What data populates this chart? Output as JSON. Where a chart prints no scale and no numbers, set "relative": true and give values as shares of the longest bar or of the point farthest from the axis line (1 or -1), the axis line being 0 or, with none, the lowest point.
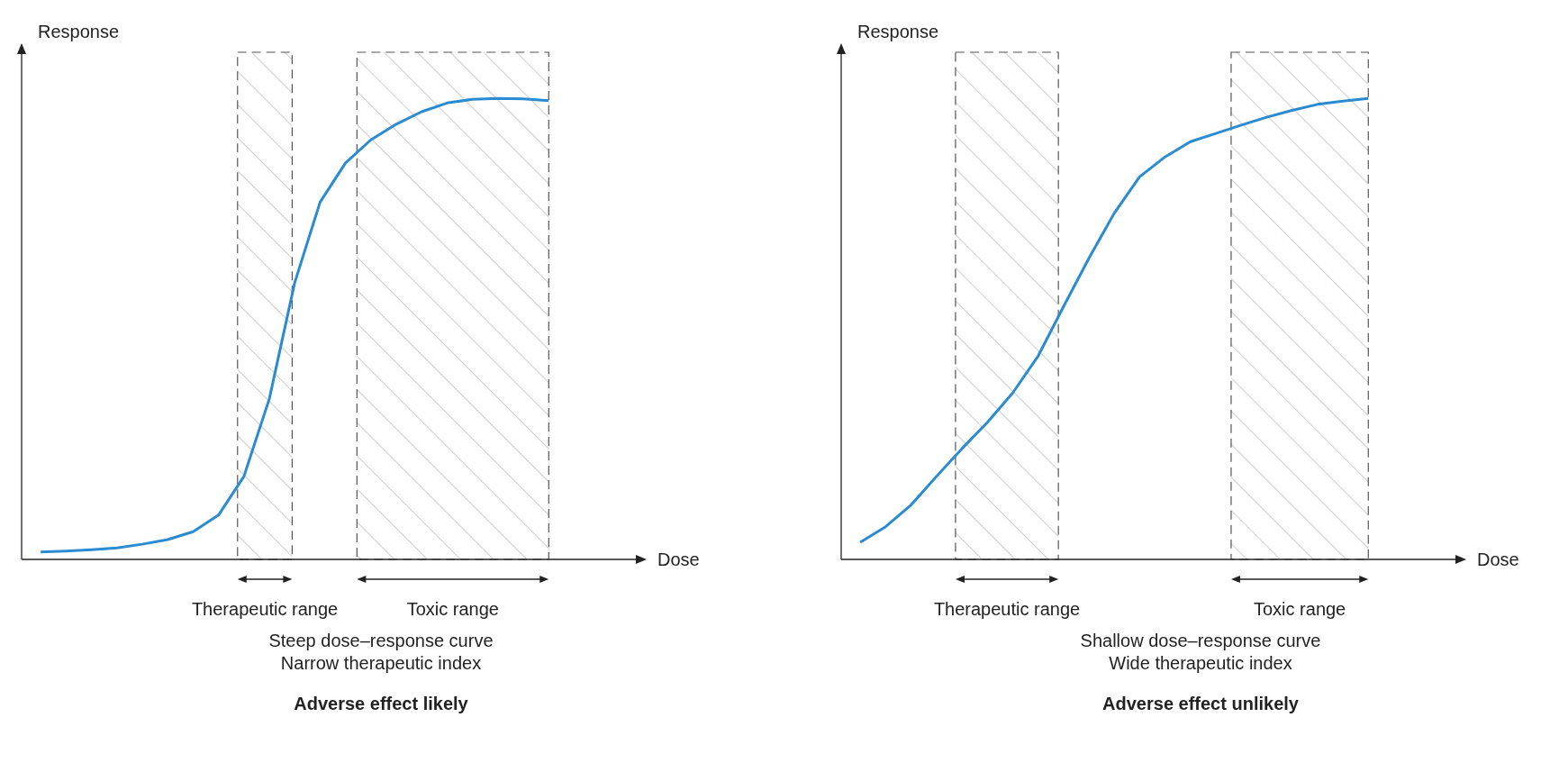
{
  "chart_data": [
    {
      "type": "line",
      "relative": true,
      "xlabel": "Dose",
      "ylabel": "Response",
      "grid": false,
      "legend": false,
      "marker": "none",
      "line_style": "solid",
      "categories": [
        null,
        null,
        null,
        null,
        null,
        null,
        null,
        null,
        null,
        null,
        null,
        null,
        null,
        null,
        null,
        null,
        null,
        null,
        null,
        null,
        null
      ],
      "series": [
        {
          "color": "#2a8bd0",
          "values": [
            0.016,
            0.018,
            0.021,
            0.025,
            0.033,
            0.043,
            0.06,
            0.096,
            0.18,
            0.348,
            0.6,
            0.775,
            0.86,
            0.91,
            0.944,
            0.971,
            0.99,
            0.998,
            1.0,
            0.999,
            0.995
          ]
        }
      ],
      "annotations": [
        "Therapeutic range",
        "Toxic range",
        "Steep dose–response curve",
        "Narrow therapeutic index",
        "Adverse effect likely"
      ]
    },
    {
      "type": "line",
      "relative": true,
      "xlabel": "Dose",
      "ylabel": "Response",
      "grid": false,
      "legend": false,
      "marker": "none",
      "line_style": "solid",
      "categories": [
        null,
        null,
        null,
        null,
        null,
        null,
        null,
        null,
        null,
        null,
        null,
        null,
        null,
        null,
        null,
        null,
        null,
        null,
        null,
        null,
        null
      ],
      "series": [
        {
          "color": "#2a8bd0",
          "values": [
            0.037,
            0.071,
            0.118,
            0.18,
            0.24,
            0.297,
            0.361,
            0.441,
            0.548,
            0.653,
            0.751,
            0.83,
            0.873,
            0.906,
            0.924,
            0.942,
            0.959,
            0.974,
            0.987,
            0.994,
            1.0
          ]
        }
      ],
      "annotations": [
        "Therapeutic range",
        "Toxic range",
        "Shallow dose–response curve",
        "Wide therapeutic index",
        "Adverse effect unlikely"
      ]
    }
  ]
}
